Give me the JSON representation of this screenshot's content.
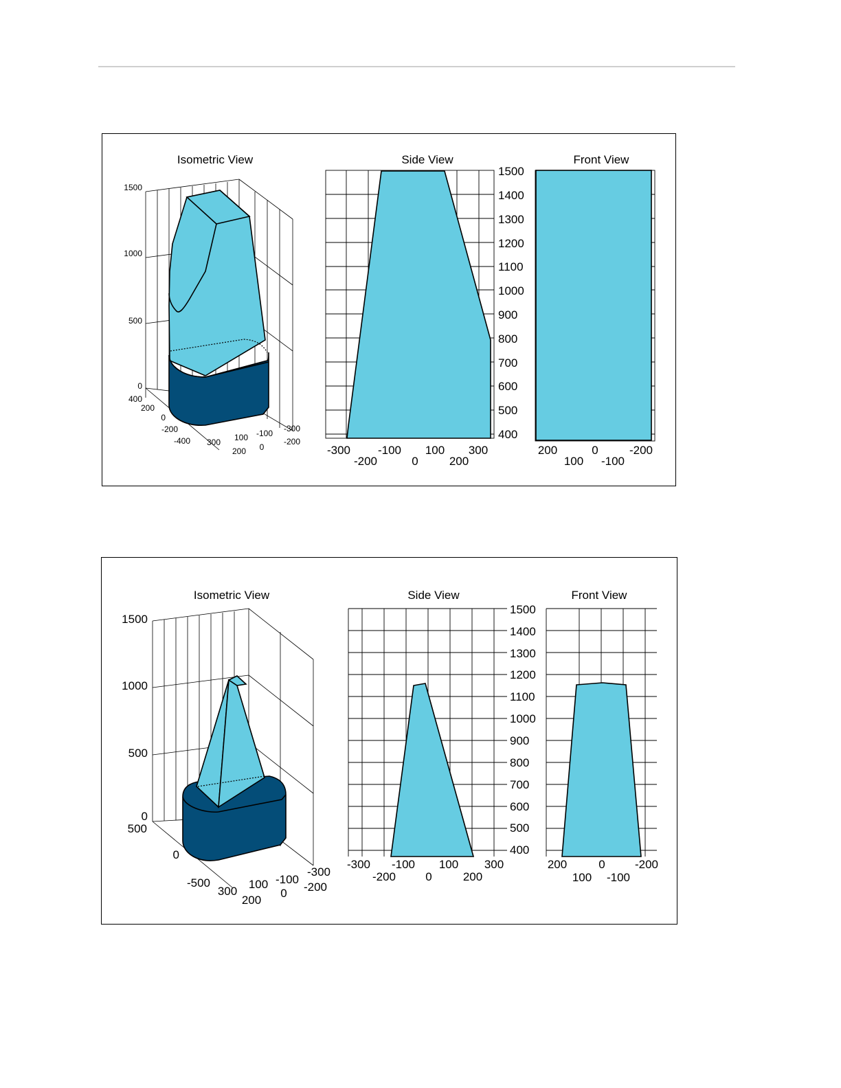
{
  "colors": {
    "light_fill": "#66cce2",
    "dark_fill": "#044d78",
    "grid": "#000000",
    "page_rule": "#cfcfcf"
  },
  "figures": [
    {
      "iso_title": "Isometric View",
      "side_title": "Side View",
      "front_title": "Front View",
      "iso_z_ticks": [
        "1500",
        "1000",
        "500",
        "0"
      ],
      "iso_y_ticks": [
        "400",
        "200",
        "0",
        "-200",
        "-400"
      ],
      "iso_x_ticks": [
        "300",
        "100",
        "200",
        "0",
        "-100",
        "-300",
        "-200"
      ],
      "side_x_ticks_top": [
        "-300",
        "-100",
        "100",
        "300"
      ],
      "side_x_ticks_bottom": [
        "-200",
        "0",
        "200"
      ],
      "front_x_ticks_top": [
        "200",
        "0",
        "-200"
      ],
      "front_x_ticks_bottom": [
        "100",
        "-100"
      ],
      "z_ticks": [
        "1500",
        "1400",
        "1300",
        "1200",
        "1100",
        "1000",
        "900",
        "800",
        "700",
        "600",
        "500",
        "400"
      ]
    },
    {
      "iso_title": "Isometric View",
      "side_title": "Side View",
      "front_title": "Front View",
      "iso_z_ticks": [
        "1500",
        "1000",
        "500",
        "0"
      ],
      "iso_y_ticks": [
        "500",
        "0",
        "-500"
      ],
      "iso_x_ticks": [
        "300",
        "100",
        "200",
        "-100",
        "0",
        "-300",
        "-200"
      ],
      "side_x_ticks_top": [
        "-300",
        "-100",
        "100",
        "300"
      ],
      "side_x_ticks_bottom": [
        "-200",
        "0",
        "200"
      ],
      "front_x_ticks_top": [
        "200",
        "0",
        "-200"
      ],
      "front_x_ticks_bottom": [
        "100",
        "-100"
      ],
      "z_ticks": [
        "1500",
        "1400",
        "1300",
        "1200",
        "1100",
        "1000",
        "900",
        "800",
        "700",
        "600",
        "500",
        "400"
      ]
    }
  ]
}
